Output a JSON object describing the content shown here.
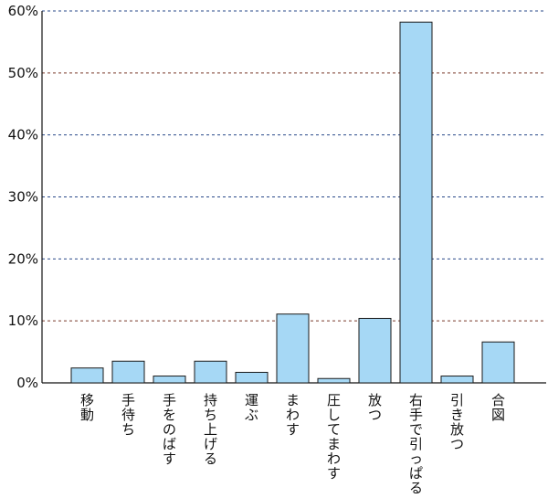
{
  "chart_data": {
    "type": "bar",
    "categories": [
      "移動",
      "手待ち",
      "手をのばす",
      "持ち上げる",
      "運ぶ",
      "まわす",
      "圧してまわす",
      "放つ",
      "右手で引っぱる",
      "引き放つ",
      "合図"
    ],
    "values": [
      2.4,
      3.5,
      1.1,
      3.5,
      1.7,
      11.1,
      0.7,
      10.4,
      58.2,
      1.1,
      6.6
    ],
    "ylim": [
      0,
      60
    ],
    "yticks": [
      0,
      10,
      20,
      30,
      40,
      50,
      60
    ],
    "ytick_labels": [
      "0%",
      "10%",
      "20%",
      "30%",
      "40%",
      "50%",
      "60%"
    ],
    "grid": true,
    "bar_color": "#a6d8f5",
    "bar_edge_color": "#1a1a1a",
    "grid_colors": [
      "#7a3a2a",
      "#2a4a8a",
      "#2a4a8a",
      "#2a4a8a",
      "#7a3a2a",
      "#2a4a8a"
    ]
  }
}
